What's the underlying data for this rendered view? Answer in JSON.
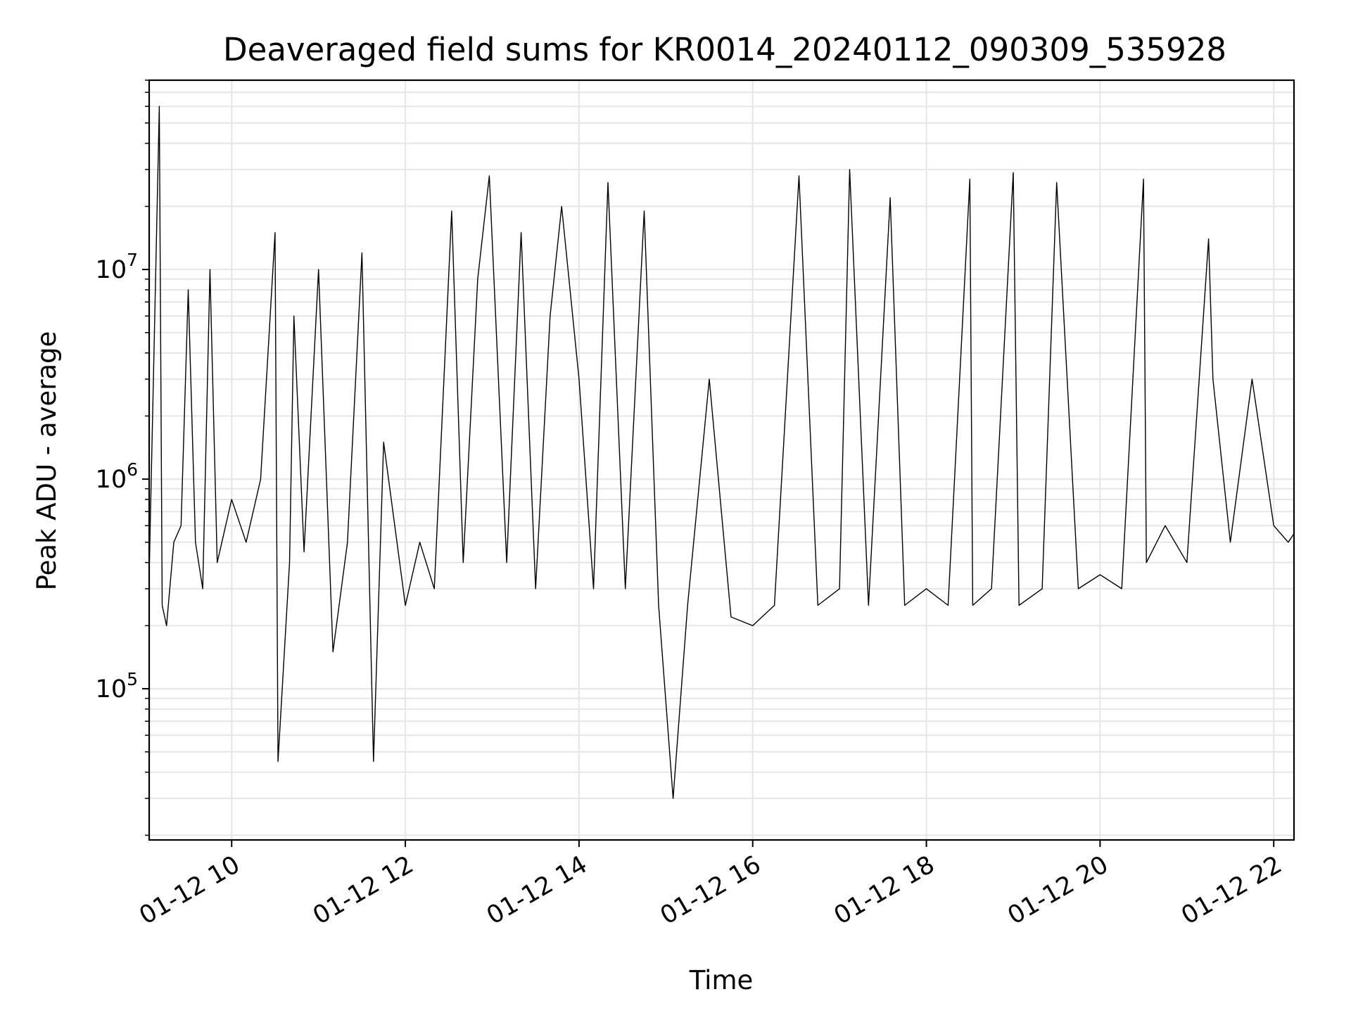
{
  "chart_data": {
    "type": "line",
    "title": "Deaveraged field sums for KR0014_20240112_090309_535928",
    "xlabel": "Time",
    "ylabel": "Peak ADU - average",
    "yscale": "log",
    "ylim": [
      19000,
      80000000
    ],
    "xlim": [
      "2024-01-12 09:03",
      "2024-01-12 22:14"
    ],
    "grid": true,
    "line_color": "#000000",
    "grid_color": "#e6e6e6",
    "x_ticks": [
      {
        "value": "2024-01-12 10:00",
        "label": "01-12 10"
      },
      {
        "value": "2024-01-12 12:00",
        "label": "01-12 12"
      },
      {
        "value": "2024-01-12 14:00",
        "label": "01-12 14"
      },
      {
        "value": "2024-01-12 16:00",
        "label": "01-12 16"
      },
      {
        "value": "2024-01-12 18:00",
        "label": "01-12 18"
      },
      {
        "value": "2024-01-12 20:00",
        "label": "01-12 20"
      },
      {
        "value": "2024-01-12 22:00",
        "label": "01-12 22"
      }
    ],
    "y_ticks": [
      {
        "value": 100000,
        "base": "10",
        "exp": "5"
      },
      {
        "value": 1000000,
        "base": "10",
        "exp": "6"
      },
      {
        "value": 10000000,
        "base": "10",
        "exp": "7"
      }
    ],
    "series": [
      {
        "x": [
          "2024-01-12 09:03",
          "2024-01-12 09:10",
          "2024-01-12 09:12",
          "2024-01-12 09:15",
          "2024-01-12 09:20",
          "2024-01-12 09:25",
          "2024-01-12 09:30",
          "2024-01-12 09:35",
          "2024-01-12 09:40",
          "2024-01-12 09:45",
          "2024-01-12 09:50",
          "2024-01-12 10:00",
          "2024-01-12 10:10",
          "2024-01-12 10:20",
          "2024-01-12 10:30",
          "2024-01-12 10:32",
          "2024-01-12 10:40",
          "2024-01-12 10:43",
          "2024-01-12 10:50",
          "2024-01-12 11:00",
          "2024-01-12 11:10",
          "2024-01-12 11:20",
          "2024-01-12 11:30",
          "2024-01-12 11:38",
          "2024-01-12 11:45",
          "2024-01-12 12:00",
          "2024-01-12 12:10",
          "2024-01-12 12:20",
          "2024-01-12 12:32",
          "2024-01-12 12:40",
          "2024-01-12 12:50",
          "2024-01-12 12:58",
          "2024-01-12 13:10",
          "2024-01-12 13:20",
          "2024-01-12 13:30",
          "2024-01-12 13:40",
          "2024-01-12 13:48",
          "2024-01-12 14:00",
          "2024-01-12 14:10",
          "2024-01-12 14:20",
          "2024-01-12 14:32",
          "2024-01-12 14:45",
          "2024-01-12 14:55",
          "2024-01-12 15:05",
          "2024-01-12 15:15",
          "2024-01-12 15:30",
          "2024-01-12 15:45",
          "2024-01-12 16:00",
          "2024-01-12 16:15",
          "2024-01-12 16:32",
          "2024-01-12 16:45",
          "2024-01-12 17:00",
          "2024-01-12 17:07",
          "2024-01-12 17:20",
          "2024-01-12 17:35",
          "2024-01-12 17:45",
          "2024-01-12 18:00",
          "2024-01-12 18:15",
          "2024-01-12 18:30",
          "2024-01-12 18:32",
          "2024-01-12 18:45",
          "2024-01-12 19:00",
          "2024-01-12 19:04",
          "2024-01-12 19:20",
          "2024-01-12 19:30",
          "2024-01-12 19:45",
          "2024-01-12 20:00",
          "2024-01-12 20:15",
          "2024-01-12 20:30",
          "2024-01-12 20:32",
          "2024-01-12 20:45",
          "2024-01-12 21:00",
          "2024-01-12 21:15",
          "2024-01-12 21:18",
          "2024-01-12 21:30",
          "2024-01-12 21:45",
          "2024-01-12 22:00",
          "2024-01-12 22:10",
          "2024-01-12 22:14"
        ],
        "y": [
          350000,
          60000000,
          250000,
          200000,
          500000,
          600000,
          8000000,
          500000,
          300000,
          10000000,
          400000,
          800000,
          500000,
          1000000,
          15000000,
          45000,
          400000,
          6000000,
          450000,
          10000000,
          150000,
          500000,
          12000000,
          45000,
          1500000,
          250000,
          500000,
          300000,
          19000000,
          400000,
          9000000,
          28000000,
          400000,
          15000000,
          300000,
          6000000,
          20000000,
          3000000,
          300000,
          26000000,
          300000,
          19000000,
          250000,
          30000,
          250000,
          3000000,
          220000,
          200000,
          250000,
          28000000,
          250000,
          300000,
          30000000,
          250000,
          22000000,
          250000,
          300000,
          250000,
          27000000,
          250000,
          300000,
          29000000,
          250000,
          300000,
          26000000,
          300000,
          350000,
          300000,
          27000000,
          400000,
          600000,
          400000,
          14000000,
          3000000,
          500000,
          3000000,
          600000,
          500000,
          550000
        ]
      }
    ]
  }
}
